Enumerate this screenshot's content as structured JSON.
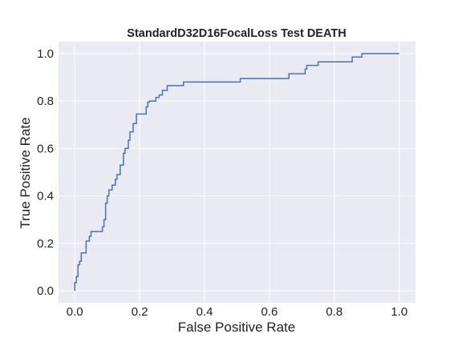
{
  "chart_data": {
    "type": "line",
    "title": "StandardD32D16FocalLoss Test DEATH",
    "xlabel": "False Positive Rate",
    "ylabel": "True Positive Rate",
    "xlim": [
      -0.05,
      1.05
    ],
    "ylim": [
      -0.05,
      1.05
    ],
    "xticks": [
      0.0,
      0.2,
      0.4,
      0.6,
      0.8,
      1.0
    ],
    "yticks": [
      0.0,
      0.2,
      0.4,
      0.6,
      0.8,
      1.0
    ],
    "xtick_labels": [
      "0.0",
      "0.2",
      "0.4",
      "0.6",
      "0.8",
      "1.0"
    ],
    "ytick_labels": [
      "0.0",
      "0.2",
      "0.4",
      "0.6",
      "0.8",
      "1.0"
    ],
    "grid": true,
    "series": [
      {
        "color": "#4c72b0",
        "step": true,
        "x": [
          0.0,
          0.0,
          0.005,
          0.005,
          0.01,
          0.01,
          0.015,
          0.015,
          0.02,
          0.02,
          0.035,
          0.035,
          0.045,
          0.045,
          0.05,
          0.05,
          0.085,
          0.085,
          0.09,
          0.09,
          0.095,
          0.095,
          0.1,
          0.1,
          0.105,
          0.105,
          0.115,
          0.115,
          0.125,
          0.125,
          0.13,
          0.13,
          0.14,
          0.14,
          0.15,
          0.15,
          0.155,
          0.155,
          0.165,
          0.165,
          0.17,
          0.17,
          0.18,
          0.18,
          0.19,
          0.19,
          0.22,
          0.22,
          0.225,
          0.225,
          0.23,
          0.23,
          0.25,
          0.25,
          0.26,
          0.26,
          0.27,
          0.27,
          0.285,
          0.285,
          0.335,
          0.335,
          0.51,
          0.51,
          0.66,
          0.66,
          0.71,
          0.71,
          0.715,
          0.715,
          0.75,
          0.75,
          0.855,
          0.855,
          0.885,
          0.885,
          0.935,
          0.935,
          1.0
        ],
        "y": [
          0.0,
          0.035,
          0.035,
          0.06,
          0.06,
          0.11,
          0.11,
          0.125,
          0.125,
          0.16,
          0.16,
          0.21,
          0.21,
          0.23,
          0.23,
          0.25,
          0.25,
          0.27,
          0.27,
          0.3,
          0.3,
          0.37,
          0.37,
          0.4,
          0.4,
          0.425,
          0.425,
          0.445,
          0.445,
          0.47,
          0.47,
          0.49,
          0.49,
          0.53,
          0.53,
          0.58,
          0.58,
          0.6,
          0.6,
          0.635,
          0.635,
          0.67,
          0.67,
          0.705,
          0.705,
          0.745,
          0.745,
          0.775,
          0.775,
          0.795,
          0.795,
          0.8,
          0.8,
          0.815,
          0.815,
          0.825,
          0.825,
          0.845,
          0.845,
          0.865,
          0.865,
          0.88,
          0.88,
          0.895,
          0.895,
          0.915,
          0.915,
          0.935,
          0.935,
          0.95,
          0.95,
          0.965,
          0.965,
          0.985,
          0.985,
          1.0,
          1.0,
          1.0,
          1.0
        ]
      }
    ]
  },
  "style": {
    "plot_background": "#eaeaf2",
    "grid_color": "#ffffff",
    "line_color": "#4c72b0",
    "text_color": "#222222"
  }
}
